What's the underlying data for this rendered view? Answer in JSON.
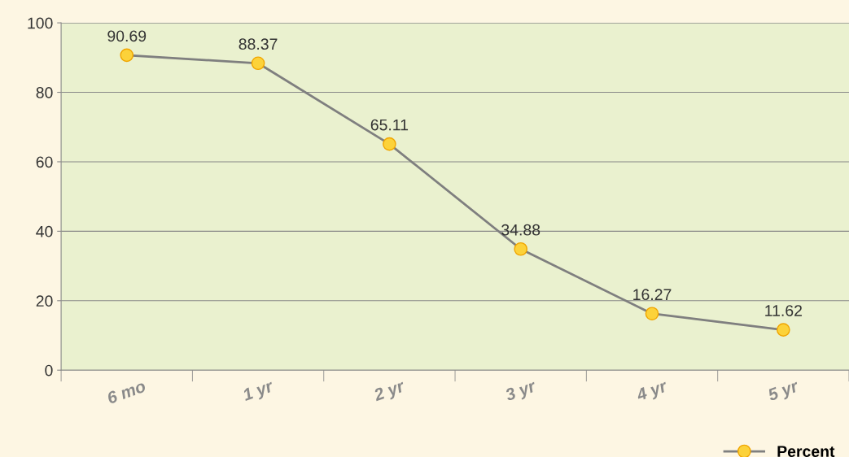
{
  "chart_data": {
    "type": "line",
    "categories": [
      "6 mo",
      "1 yr",
      "2 yr",
      "3 yr",
      "4 yr",
      "5 yr"
    ],
    "series": [
      {
        "name": "Percent",
        "color": "#7f7f7f",
        "values": [
          90.69,
          88.37,
          65.11,
          34.88,
          16.27,
          11.62
        ]
      }
    ],
    "ylim": [
      0,
      100
    ],
    "yticks": [
      0,
      20,
      40,
      60,
      80,
      100
    ],
    "grid": "y",
    "legend": "bottom right",
    "marker": "circle",
    "line_style": "solid",
    "data_labels": true
  }
}
